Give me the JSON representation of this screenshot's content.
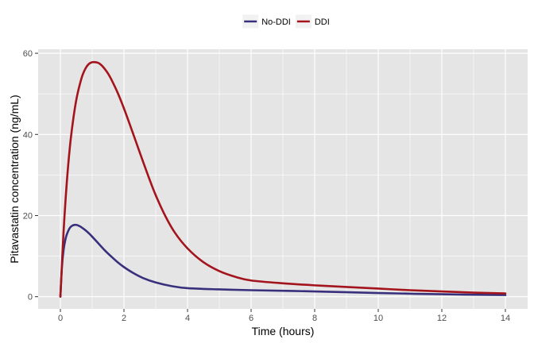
{
  "chart_data": {
    "type": "line",
    "title": "",
    "xlabel": "Time (hours)",
    "ylabel": "Pitavastatin concentration (ng/mL)",
    "xlim": [
      -0.7,
      14.7
    ],
    "ylim": [
      -3,
      61
    ],
    "x_ticks": [
      0,
      2,
      4,
      6,
      8,
      10,
      12,
      14
    ],
    "y_ticks": [
      0,
      20,
      40,
      60
    ],
    "grid": true,
    "legend_position": "top",
    "background_color": "#e5e5e5",
    "grid_color": "#ffffff",
    "series": [
      {
        "name": "No-DDI",
        "color": "#38307c",
        "x": [
          0,
          0.05,
          0.1,
          0.15,
          0.2,
          0.3,
          0.4,
          0.5,
          0.6,
          0.7,
          0.8,
          0.9,
          1.0,
          1.2,
          1.4,
          1.6,
          1.8,
          2.0,
          2.3,
          2.6,
          3.0,
          3.5,
          4.0,
          5.0,
          6.0,
          8.0,
          10.0,
          12.0,
          14.0
        ],
        "values": [
          0,
          7.5,
          11.5,
          13.8,
          15.3,
          17.0,
          17.6,
          17.7,
          17.4,
          16.9,
          16.3,
          15.6,
          14.8,
          13.1,
          11.4,
          9.9,
          8.5,
          7.3,
          5.8,
          4.6,
          3.5,
          2.6,
          2.1,
          1.8,
          1.6,
          1.3,
          0.9,
          0.6,
          0.4
        ]
      },
      {
        "name": "DDI",
        "color": "#a4141c",
        "x": [
          0,
          0.1,
          0.2,
          0.3,
          0.4,
          0.5,
          0.6,
          0.7,
          0.8,
          0.9,
          1.0,
          1.1,
          1.2,
          1.3,
          1.4,
          1.5,
          1.6,
          1.8,
          2.0,
          2.2,
          2.4,
          2.6,
          2.8,
          3.0,
          3.3,
          3.6,
          4.0,
          4.5,
          5.0,
          5.5,
          6.0,
          7.0,
          8.0,
          9.0,
          10.0,
          11.0,
          12.0,
          13.0,
          14.0
        ],
        "values": [
          0,
          16,
          28,
          37,
          43.5,
          48.5,
          52,
          54.7,
          56.4,
          57.4,
          57.8,
          57.8,
          57.6,
          57.0,
          56.1,
          55.0,
          53.6,
          50.3,
          46.4,
          42.1,
          37.7,
          33.3,
          29.0,
          25.0,
          19.9,
          15.8,
          11.9,
          8.5,
          6.3,
          4.9,
          4.0,
          3.3,
          2.8,
          2.4,
          2.0,
          1.6,
          1.3,
          1.0,
          0.8
        ]
      }
    ]
  }
}
